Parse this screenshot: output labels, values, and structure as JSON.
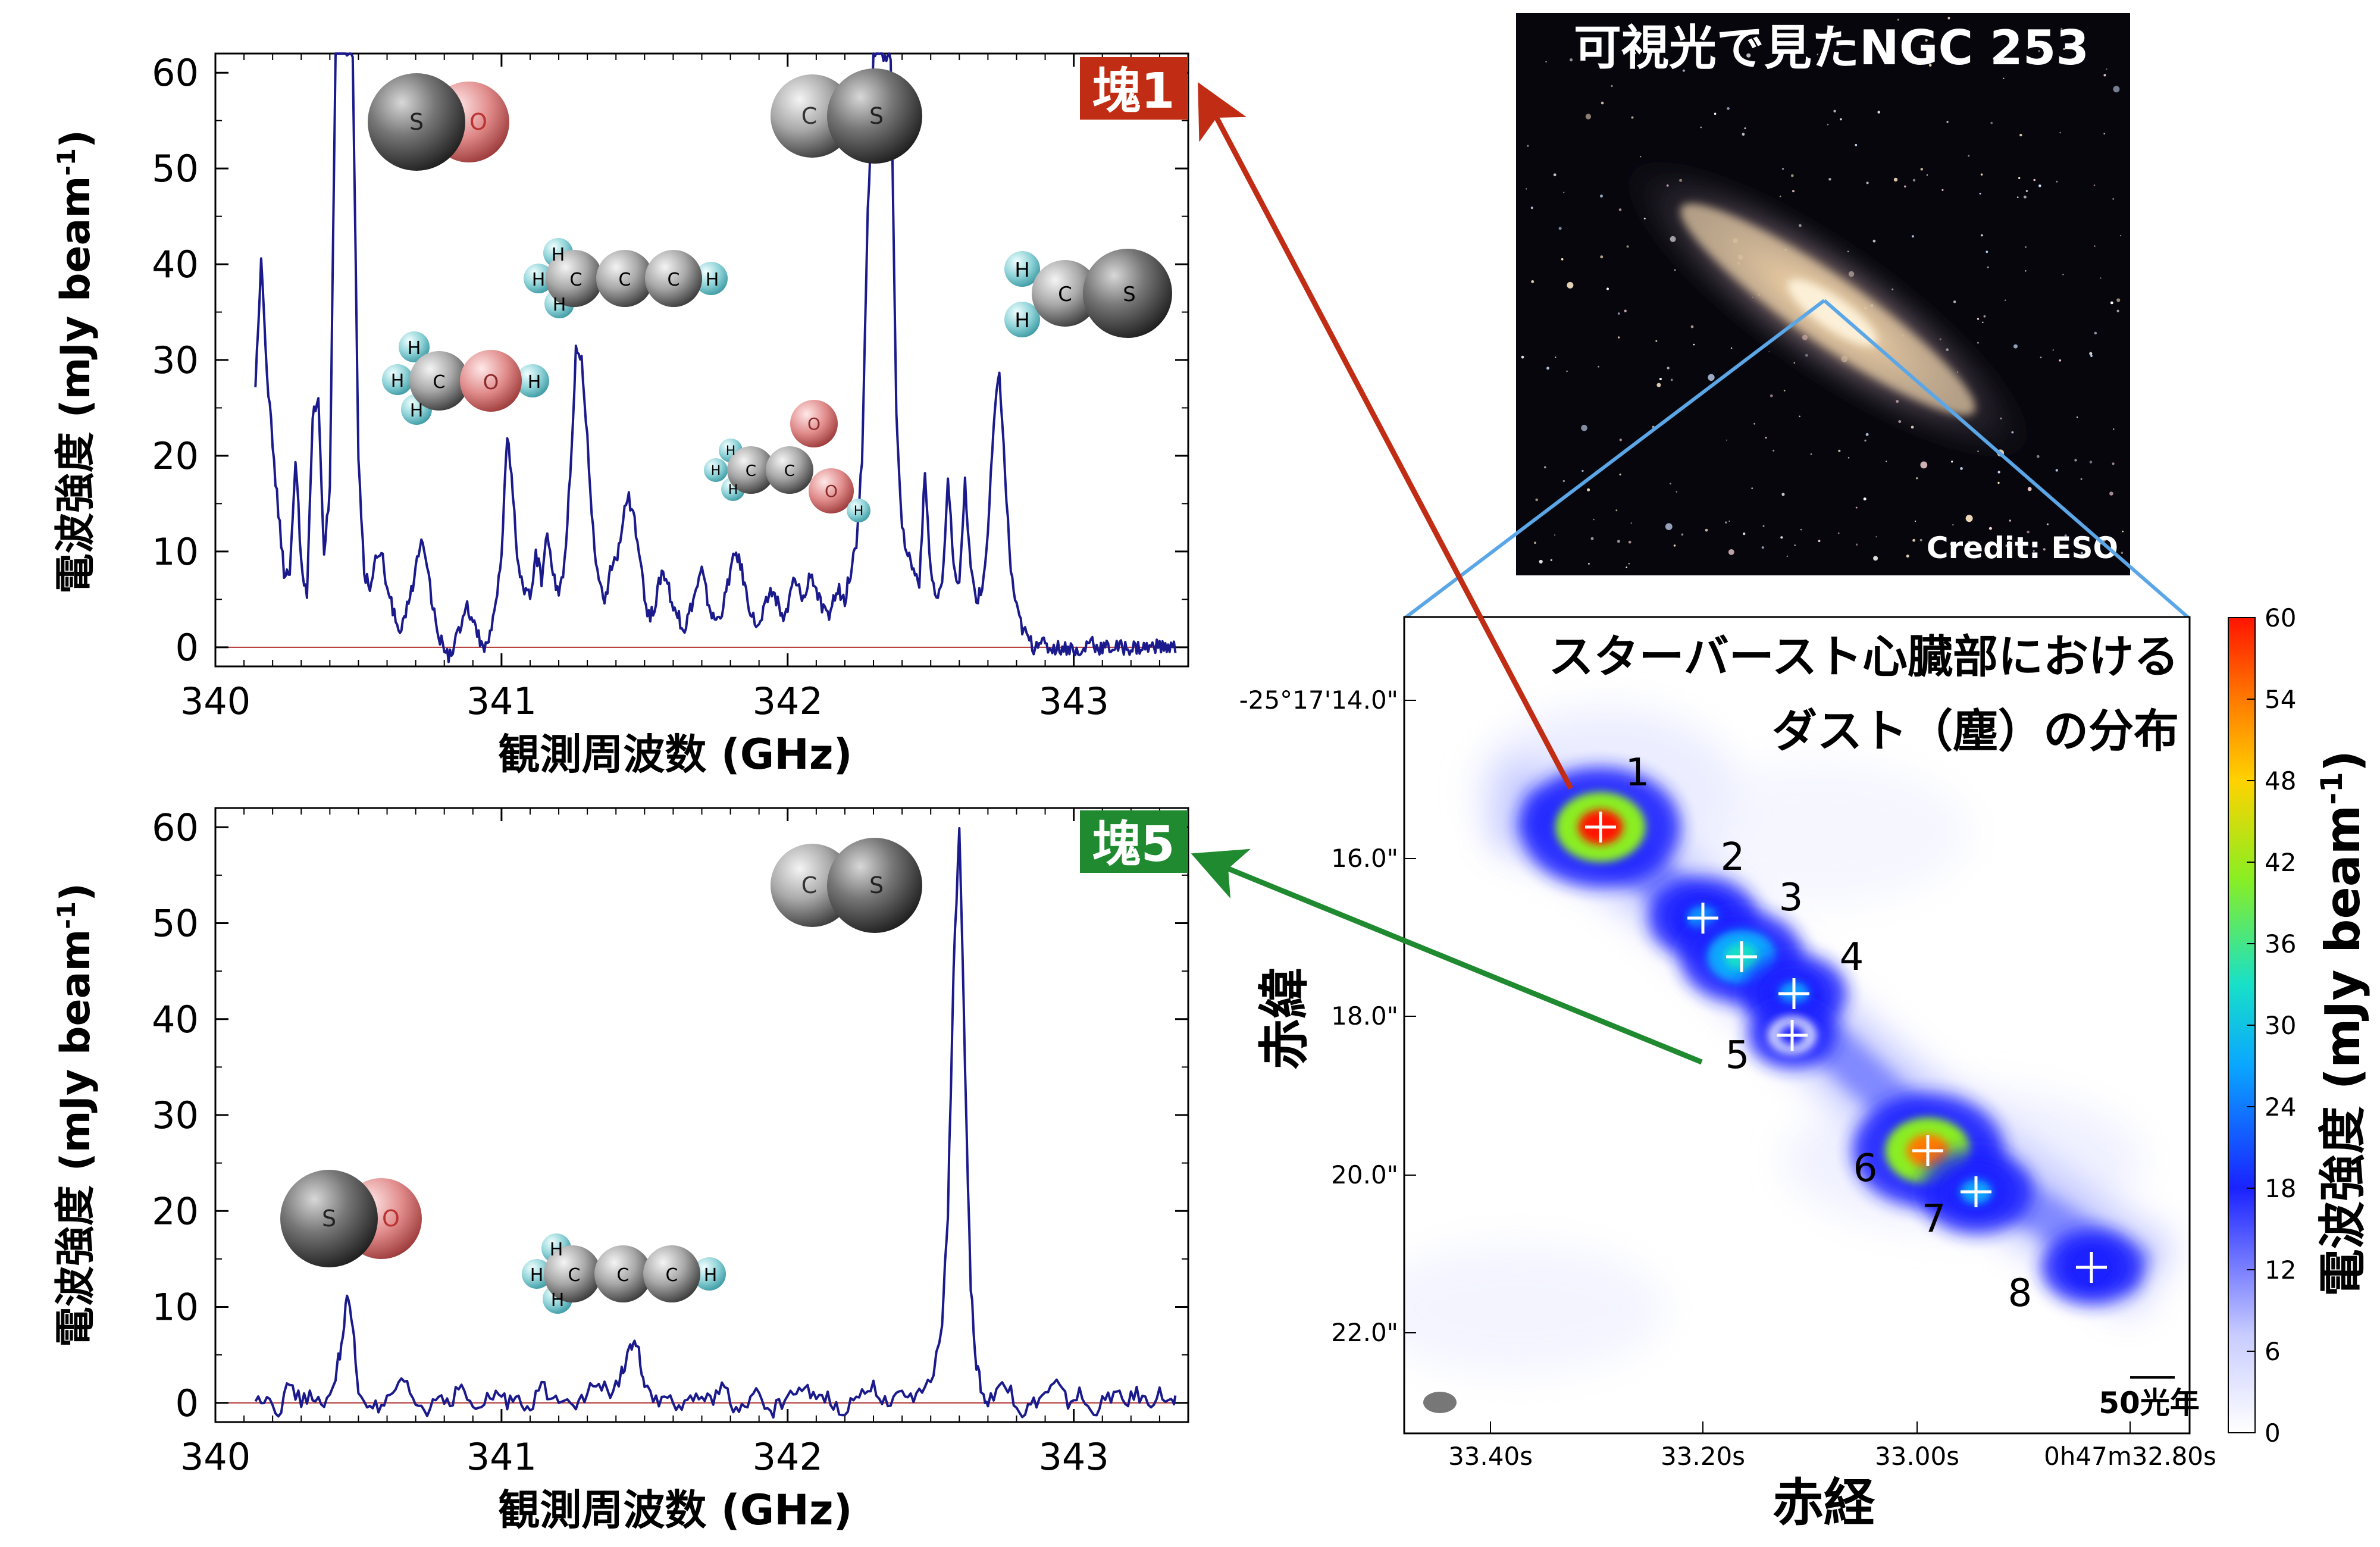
{
  "chart_data": [
    {
      "type": "line",
      "id": "spectrum-clump1",
      "badge": "塊1",
      "badge_color": "#c12d14",
      "xlabel": "観測周波数 (GHz)",
      "ylabel": "電波強度 (mJy beam",
      "ylabel_sup": "-1",
      "ylabel_close": ")",
      "xlim": [
        340.0,
        343.4
      ],
      "ylim": [
        -2,
        62
      ],
      "xticks": [
        "340",
        "341",
        "342",
        "343"
      ],
      "yticks": [
        "0",
        "10",
        "20",
        "30",
        "40",
        "50",
        "60"
      ],
      "line_color": "#1a1a8c",
      "baseline_color": "#b03030",
      "series": [
        {
          "x": [
            340.14,
            340.16,
            340.18,
            340.2,
            340.22,
            340.24,
            340.26,
            340.28,
            340.3,
            340.32,
            340.34,
            340.36,
            340.38,
            340.4,
            340.42,
            340.44,
            340.46,
            340.48,
            340.5,
            340.52,
            340.54,
            340.56,
            340.58,
            340.6,
            340.62,
            340.64,
            340.66,
            340.68,
            340.7,
            340.72,
            340.74,
            340.76,
            340.78,
            340.8,
            340.82,
            340.84,
            340.86,
            340.88,
            340.9,
            340.92,
            340.94,
            340.96,
            340.98,
            341.0,
            341.02,
            341.04,
            341.06,
            341.08,
            341.1,
            341.12,
            341.14,
            341.16,
            341.18,
            341.2,
            341.22,
            341.24,
            341.26,
            341.28,
            341.3,
            341.32,
            341.34,
            341.36,
            341.38,
            341.4,
            341.42,
            341.44,
            341.46,
            341.48,
            341.5,
            341.52,
            341.54,
            341.56,
            341.58,
            341.6,
            341.62,
            341.64,
            341.66,
            341.68,
            341.7,
            341.72,
            341.74,
            341.76,
            341.78,
            341.8,
            341.82,
            341.84,
            341.86,
            341.88,
            341.9,
            341.92,
            341.94,
            341.96,
            341.98,
            342.0,
            342.02,
            342.04,
            342.06,
            342.08,
            342.1,
            342.12,
            342.14,
            342.16,
            342.18,
            342.2,
            342.22,
            342.24,
            342.26,
            342.28,
            342.3,
            342.32,
            342.34,
            342.36,
            342.38,
            342.4,
            342.42,
            342.44,
            342.46,
            342.48,
            342.5,
            342.52,
            342.54,
            342.56,
            342.58,
            342.6,
            342.62,
            342.64,
            342.66,
            342.68,
            342.7,
            342.72,
            342.74,
            342.76,
            342.78,
            342.8,
            342.82,
            342.84,
            342.86,
            342.88,
            342.9,
            342.92,
            342.94,
            342.96,
            342.98,
            343.0,
            343.02,
            343.04,
            343.06,
            343.08,
            343.1,
            343.12,
            343.14,
            343.16,
            343.18,
            343.2,
            343.22,
            343.24,
            343.26,
            343.28,
            343.3,
            343.32,
            343.34
          ],
          "y": [
            27,
            41,
            29,
            21,
            14,
            8,
            7,
            20,
            9,
            5,
            24,
            26,
            10,
            16,
            62,
            62,
            62,
            62,
            20,
            8,
            6,
            9,
            10,
            6,
            4,
            2,
            3,
            5,
            8,
            12,
            9,
            4,
            1,
            0,
            -1,
            1,
            2,
            4,
            3,
            1,
            0,
            1,
            4,
            10,
            22,
            16,
            8,
            6,
            5,
            10,
            7,
            12,
            8,
            5,
            9,
            18,
            31,
            30,
            22,
            12,
            7,
            4,
            8,
            9,
            12,
            16,
            14,
            10,
            5,
            3,
            5,
            8,
            7,
            4,
            3,
            2,
            4,
            6,
            8,
            5,
            3,
            3,
            5,
            8,
            10,
            8,
            5,
            3,
            2,
            4,
            6,
            5,
            3,
            4,
            7,
            6,
            5,
            8,
            6,
            4,
            3,
            5,
            6,
            5,
            8,
            11,
            20,
            45,
            62,
            62,
            62,
            62,
            25,
            12,
            10,
            8,
            7,
            18,
            8,
            5,
            6,
            17,
            9,
            6,
            17,
            8,
            5,
            6,
            12,
            23,
            29,
            18,
            8,
            4,
            2,
            1,
            0,
            1,
            0,
            0,
            0,
            0,
            0,
            0,
            -1,
            0,
            1,
            0,
            0,
            0,
            0,
            0,
            0,
            0,
            0,
            0,
            0,
            0,
            0,
            0,
            0
          ]
        }
      ],
      "molecules": [
        "SO",
        "CS",
        "CH3CCH",
        "H2CS",
        "CH3OH",
        "HCOOCH3"
      ],
      "atom_labels": {
        "S": "S",
        "O": "O",
        "C": "C",
        "H": "H"
      }
    },
    {
      "type": "line",
      "id": "spectrum-clump5",
      "badge": "塊5",
      "badge_color": "#1f8a2f",
      "xlabel": "観測周波数 (GHz)",
      "ylabel": "電波強度 (mJy beam",
      "ylabel_sup": "-1",
      "ylabel_close": ")",
      "xlim": [
        340.0,
        343.4
      ],
      "ylim": [
        -2,
        62
      ],
      "xticks": [
        "340",
        "341",
        "342",
        "343"
      ],
      "yticks": [
        "0",
        "10",
        "20",
        "30",
        "40",
        "50",
        "60"
      ],
      "line_color": "#1a1a8c",
      "baseline_color": "#b03030",
      "series": [
        {
          "x": [
            340.14,
            340.18,
            340.22,
            340.26,
            340.3,
            340.34,
            340.38,
            340.42,
            340.44,
            340.46,
            340.48,
            340.5,
            340.54,
            340.58,
            340.62,
            340.66,
            340.7,
            340.74,
            340.78,
            340.82,
            340.86,
            340.9,
            340.94,
            340.98,
            341.02,
            341.06,
            341.1,
            341.14,
            341.18,
            341.22,
            341.26,
            341.3,
            341.34,
            341.38,
            341.42,
            341.44,
            341.46,
            341.48,
            341.5,
            341.54,
            341.58,
            341.62,
            341.66,
            341.7,
            341.74,
            341.78,
            341.82,
            341.86,
            341.9,
            341.94,
            341.98,
            342.02,
            342.06,
            342.1,
            342.14,
            342.18,
            342.22,
            342.26,
            342.3,
            342.34,
            342.38,
            342.42,
            342.46,
            342.5,
            342.54,
            342.56,
            342.58,
            342.6,
            342.62,
            342.64,
            342.66,
            342.68,
            342.7,
            342.74,
            342.78,
            342.82,
            342.86,
            342.9,
            342.94,
            342.98,
            343.02,
            343.06,
            343.1,
            343.14,
            343.18,
            343.22,
            343.26,
            343.3,
            343.34
          ],
          "y": [
            0,
            1,
            -1,
            2,
            0,
            1,
            -1,
            3,
            6,
            11,
            8,
            1,
            0,
            -1,
            1,
            2,
            0,
            -1,
            1,
            0,
            2,
            -1,
            0,
            1,
            0,
            1,
            -1,
            2,
            0,
            1,
            0,
            1,
            2,
            1,
            3,
            5,
            6,
            5,
            2,
            0,
            1,
            -1,
            0,
            1,
            0,
            2,
            -1,
            0,
            1,
            -1,
            0,
            1,
            2,
            0,
            1,
            -1,
            0,
            1,
            2,
            0,
            1,
            0,
            1,
            2,
            8,
            20,
            45,
            60,
            35,
            12,
            4,
            1,
            0,
            2,
            1,
            -1,
            0,
            1,
            2,
            0,
            1,
            -1,
            0,
            1,
            0,
            1,
            0,
            1,
            0
          ]
        }
      ],
      "molecules": [
        "CS",
        "SO",
        "CH3CCH"
      ],
      "atom_labels": {
        "S": "S",
        "O": "O",
        "C": "C",
        "H": "H"
      }
    },
    {
      "type": "heatmap",
      "id": "dust-map",
      "title_line1": "スターバースト心臓部における",
      "title_line2": "ダスト（塵）の分布",
      "xlabel": "赤経",
      "ylabel": "赤緯",
      "xticks": [
        "33.40s",
        "33.20s",
        "33.00s",
        "0h47m32.80s"
      ],
      "yticks": [
        "-25°17'14.0\"",
        "16.0\"",
        "18.0\"",
        "20.0\"",
        "22.0\""
      ],
      "colorbar_label": "電波強度 (mJy beam",
      "colorbar_sup": "-1",
      "colorbar_close": ")",
      "colorbar_ticks": [
        "0",
        "6",
        "12",
        "18",
        "24",
        "30",
        "36",
        "42",
        "48",
        "54",
        "60"
      ],
      "colorbar_range": [
        0,
        60
      ],
      "scale_label": "50光年",
      "clumps": [
        {
          "label": "1",
          "value": 60
        },
        {
          "label": "2",
          "value": 30
        },
        {
          "label": "3",
          "value": 38
        },
        {
          "label": "4",
          "value": 28
        },
        {
          "label": "5",
          "value": 18
        },
        {
          "label": "6",
          "value": 55
        },
        {
          "label": "7",
          "value": 32
        },
        {
          "label": "8",
          "value": 25
        }
      ]
    }
  ],
  "galaxy_image": {
    "title": "可視光で見たNGC 253",
    "credit": "Credit: ESO"
  },
  "colors": {
    "arrow_clump1": "#c12d14",
    "arrow_clump5": "#1f8a2f",
    "zoom_lines": "#5aa6e6"
  }
}
